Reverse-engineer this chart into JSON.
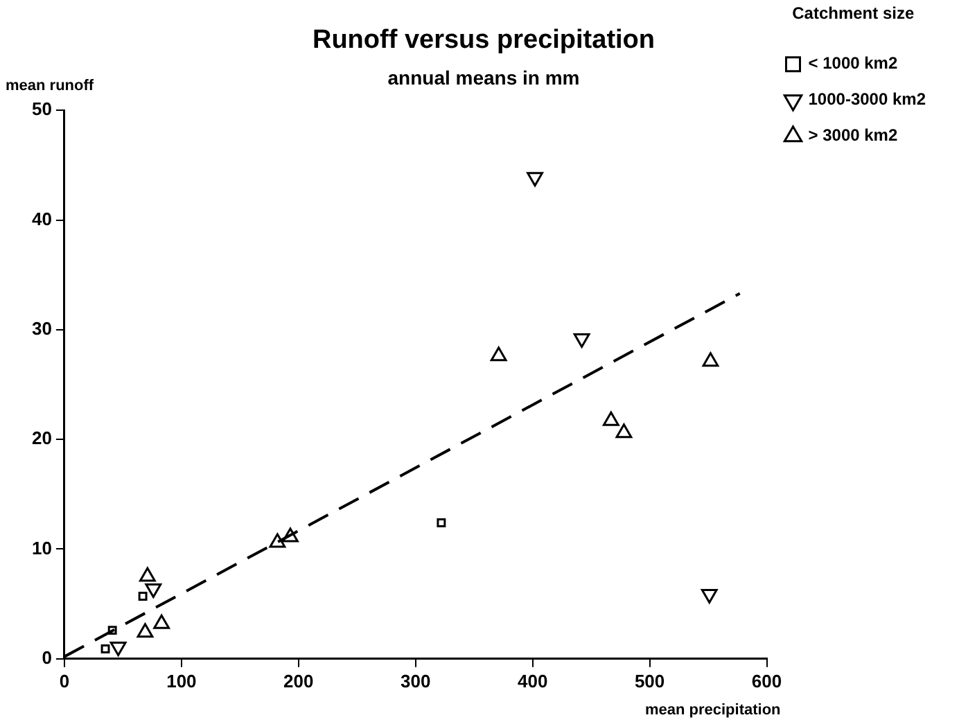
{
  "chart_data": {
    "type": "scatter",
    "title": "Runoff versus precipitation",
    "subtitle": "annual means in mm",
    "xlabel": "mean precipitation",
    "ylabel": "mean runoff",
    "legend_title": "Catchment size",
    "legend": "top right",
    "grid": false,
    "xlim": [
      0,
      600
    ],
    "xticks": [
      0,
      100,
      200,
      300,
      400,
      500,
      600
    ],
    "ylim": [
      0,
      50
    ],
    "yticks": [
      0,
      10,
      20,
      30,
      40,
      50
    ],
    "series": [
      {
        "name": "< 1000 km2",
        "color": "#000000",
        "marker": "square",
        "x": [
          41,
          35,
          67,
          322
        ],
        "values": [
          2.6,
          0.9,
          5.7,
          12.4
        ]
      },
      {
        "name": "1000-3000 km2",
        "color": "#000000",
        "marker": "triangle_down",
        "x": [
          46,
          76,
          402,
          442,
          551
        ],
        "values": [
          1.1,
          6.4,
          43.9,
          29.2,
          5.9
        ]
      },
      {
        "name": "> 3000 km2",
        "color": "#000000",
        "marker": "triangle",
        "x": [
          71,
          69,
          83,
          182,
          193,
          371,
          467,
          478,
          552
        ],
        "values": [
          7.5,
          2.4,
          3.2,
          10.6,
          11.1,
          27.6,
          21.7,
          20.6,
          27.1
        ]
      },
      {
        "type": "line",
        "color": "#000000",
        "line_style": "dashed",
        "marker": "none",
        "x": [
          0,
          577
        ],
        "values": [
          0.2,
          33.3
        ]
      }
    ]
  }
}
